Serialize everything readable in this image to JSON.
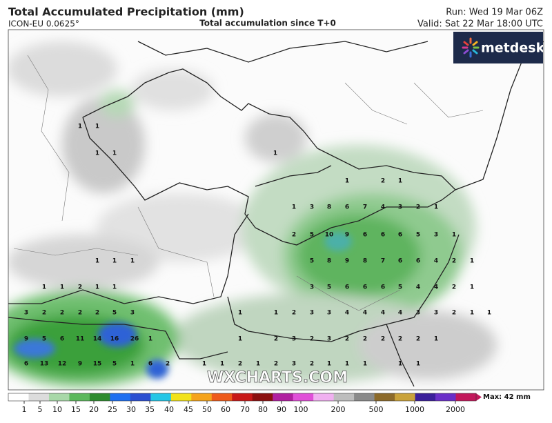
{
  "header": {
    "title": "Total Accumulated Precipitation (mm)",
    "model": "ICON-EU 0.0625°",
    "subtitle": "Total accumulation since T+0",
    "run": "Run: Wed 19 Mar 06Z",
    "valid": "Valid: Sat 22 Mar 18:00 UTC"
  },
  "logo": "metdesk",
  "watermark": "WXCHARTS.COM",
  "map_labels": {
    "rows": [
      [
        1,
        1
      ],
      [
        1,
        1,
        1
      ],
      [
        1,
        2,
        1
      ],
      [
        1,
        3,
        8,
        6,
        7,
        4,
        3,
        2,
        1
      ],
      [
        2,
        5,
        10,
        9,
        6,
        6,
        6,
        5,
        3,
        1
      ],
      [
        1,
        1,
        1,
        5,
        8,
        9,
        8,
        7,
        6,
        6,
        4,
        2,
        1
      ],
      [
        1,
        1,
        2,
        1,
        1,
        3,
        5,
        6,
        6,
        6,
        5,
        4,
        4,
        2,
        1
      ],
      [
        3,
        2,
        2,
        2,
        2,
        5,
        3,
        1,
        1,
        2,
        3,
        3,
        4,
        4,
        4,
        4,
        3,
        3,
        2,
        1,
        1
      ],
      [
        9,
        5,
        6,
        11,
        14,
        16,
        26,
        1,
        1,
        2,
        3,
        2,
        3,
        2,
        2,
        2,
        2,
        2,
        1
      ],
      [
        6,
        13,
        12,
        9,
        15,
        5,
        1,
        6,
        2,
        1,
        1,
        2,
        1,
        2,
        3,
        2,
        1,
        1,
        1,
        1,
        1
      ]
    ]
  },
  "colorbar": {
    "ticks": [
      1,
      5,
      10,
      15,
      20,
      25,
      30,
      35,
      40,
      45,
      50,
      60,
      70,
      80,
      90,
      100,
      200,
      500,
      1000,
      2000
    ],
    "max_label": "Max: 42 mm"
  }
}
